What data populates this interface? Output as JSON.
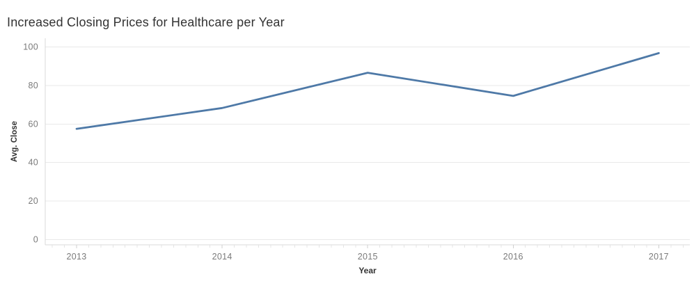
{
  "chart_data": {
    "type": "line",
    "title": "Increased Closing Prices for Healthcare per Year",
    "xlabel": "Year",
    "ylabel": "Avg. Close",
    "x": [
      "2013",
      "2014",
      "2015",
      "2016",
      "2017"
    ],
    "series": [
      {
        "name": "Avg. Close",
        "values": [
          57.5,
          68.3,
          86.6,
          74.6,
          96.8
        ]
      }
    ],
    "ylim": [
      0,
      100
    ],
    "yticks": [
      0,
      20,
      40,
      60,
      80,
      100
    ],
    "grid": true,
    "legend": "none",
    "minor_x_ticks_per_interval": 12
  },
  "colors": {
    "line": "#4e79a7",
    "title_text": "#323232",
    "axis_title_text": "#333333",
    "tick_label_text": "#7a7a7a",
    "gridline": "#e9e9e9",
    "axis_line": "#d9d9d9",
    "major_tick": "#cfcfcf",
    "minor_tick": "#e4e4e4",
    "background": "#ffffff"
  }
}
